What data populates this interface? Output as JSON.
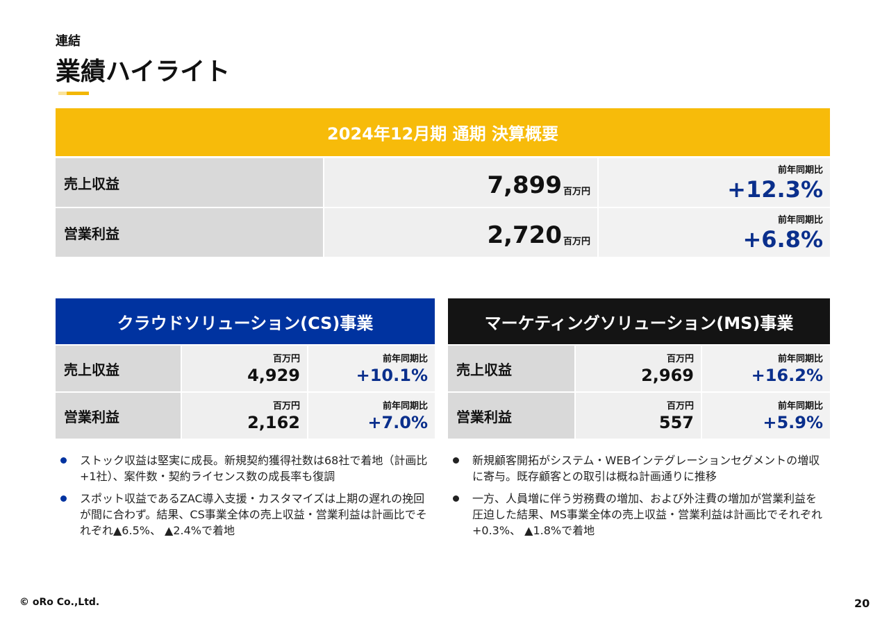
{
  "header": {
    "category": "連結",
    "title": "業績ハイライト"
  },
  "summary": {
    "title": "2024年12月期 通期 決算概要",
    "rows": [
      {
        "label": "売上収益",
        "value": "7,899",
        "unit": "百万円",
        "yoy_label": "前年同期比",
        "yoy": "+12.3%"
      },
      {
        "label": "営業利益",
        "value": "2,720",
        "unit": "百万円",
        "yoy_label": "前年同期比",
        "yoy": "+6.8%"
      }
    ]
  },
  "segments": [
    {
      "title": "クラウドソリューション(CS)事業",
      "rows": [
        {
          "label": "売上収益",
          "unit": "百万円",
          "value": "4,929",
          "yoy_label": "前年同期比",
          "yoy": "+10.1%"
        },
        {
          "label": "営業利益",
          "unit": "百万円",
          "value": "2,162",
          "yoy_label": "前年同期比",
          "yoy": "+7.0%"
        }
      ],
      "bullets": [
        "ストック収益は堅実に成長。新規契約獲得社数は68社で着地（計画比+1社）、案件数・契約ライセンス数の成長率も復調",
        "スポット収益であるZAC導入支援・カスタマイズは上期の遅れの挽回が間に合わず。結果、CS事業全体の売上収益・営業利益は計画比でそれぞれ▲6.5%、 ▲2.4%で着地"
      ]
    },
    {
      "title": "マーケティングソリューション(MS)事業",
      "rows": [
        {
          "label": "売上収益",
          "unit": "百万円",
          "value": "2,969",
          "yoy_label": "前年同期比",
          "yoy": "+16.2%"
        },
        {
          "label": "営業利益",
          "unit": "百万円",
          "value": "557",
          "yoy_label": "前年同期比",
          "yoy": "+5.9%"
        }
      ],
      "bullets": [
        "新規顧客開拓がシステム・WEBインテグレーションセグメントの増収に寄与。既存顧客との取引は概ね計画通りに推移",
        "一方、人員増に伴う労務費の増加、および外注費の増加が営業利益を圧迫した結果、MS事業全体の売上収益・営業利益は計画比でそれぞれ+0.3%、 ▲1.8%で着地"
      ]
    }
  ],
  "footer": {
    "copyright": "© oRo Co.,Ltd.",
    "page": "20"
  }
}
